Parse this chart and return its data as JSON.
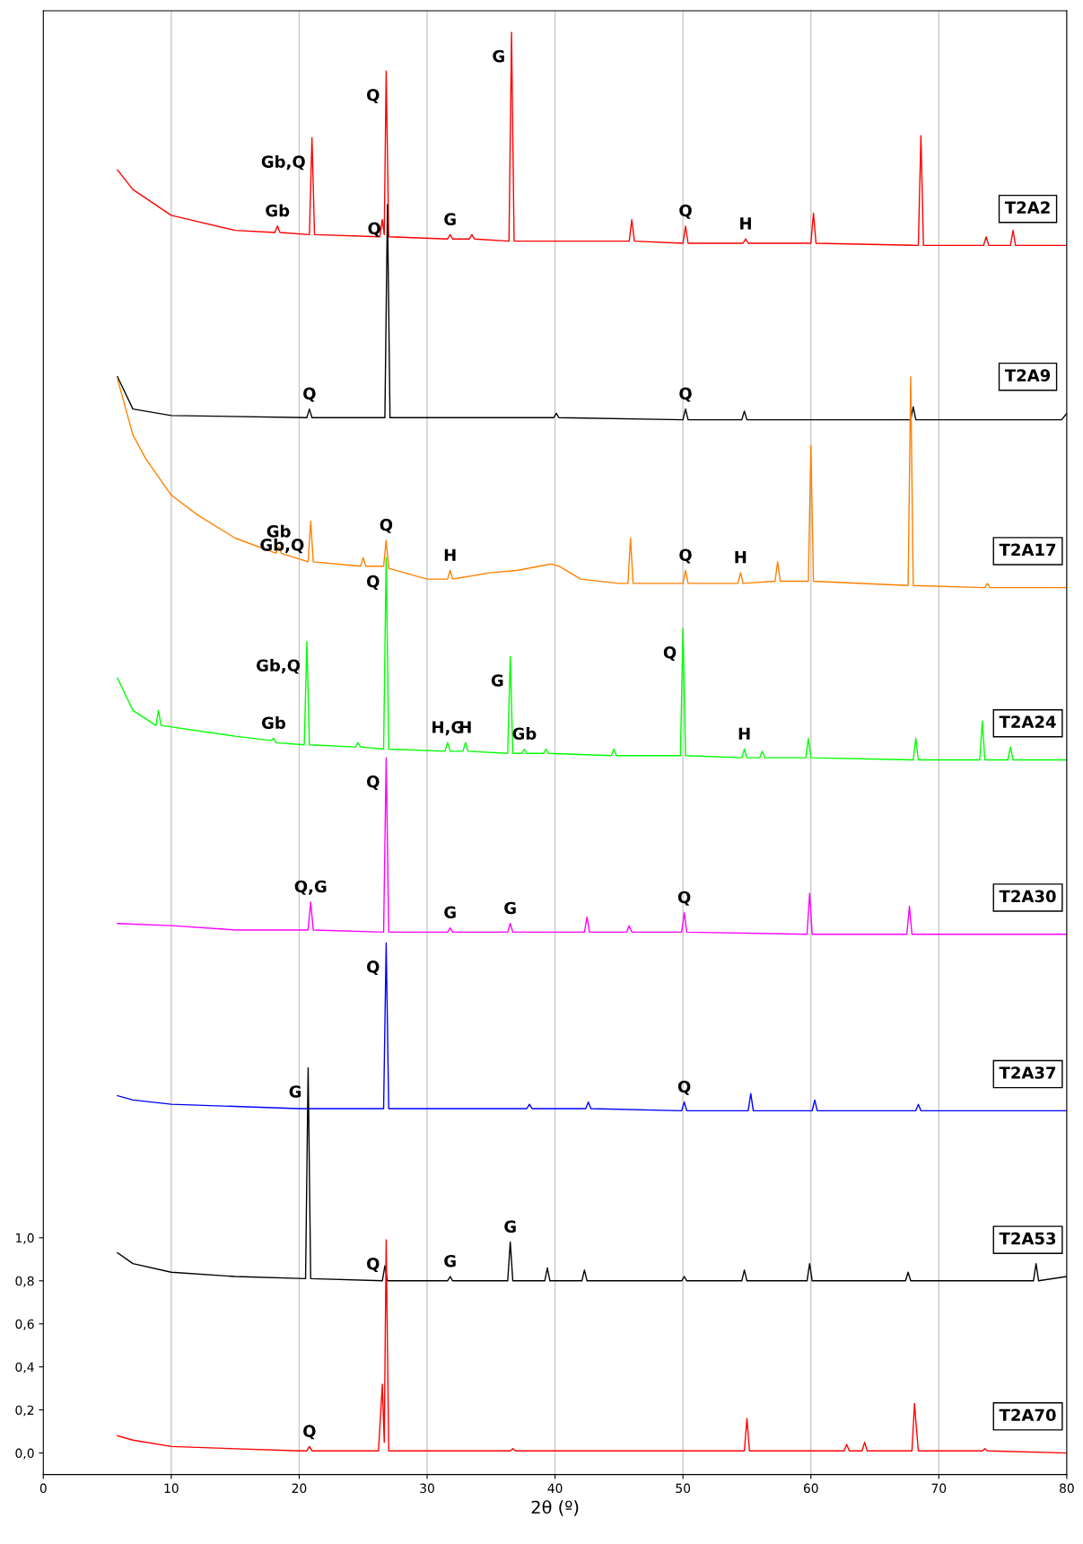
{
  "chart_data": {
    "type": "line",
    "xlabel": "2θ (º)",
    "xlim": [
      0,
      80
    ],
    "xticks": [
      0,
      10,
      20,
      30,
      40,
      50,
      60,
      70,
      80
    ],
    "ylim": [
      -0.1,
      6.7
    ],
    "yticks": [
      {
        "value": 0,
        "label": "0,0"
      },
      {
        "value": 0.2,
        "label": "0,2"
      },
      {
        "value": 0.4,
        "label": "0,4"
      },
      {
        "value": 0.6,
        "label": "0,6"
      },
      {
        "value": 0.8,
        "label": "0,8"
      },
      {
        "value": 1.0,
        "label": "1,0"
      }
    ],
    "grid": "x",
    "line_style": "solid",
    "series": [
      {
        "name": "T2A2",
        "color": "#ff0000",
        "x": [
          5.8,
          7,
          10,
          15,
          18.1,
          18.3,
          18.5,
          20.8,
          21.0,
          21.2,
          26.3,
          26.5,
          26.65,
          26.8,
          27.0,
          31.6,
          31.8,
          32.0,
          33.3,
          33.5,
          33.7,
          36.4,
          36.6,
          36.8,
          45.8,
          46.0,
          46.2,
          50.0,
          50.2,
          50.4,
          54.7,
          54.9,
          55.1,
          60.0,
          60.2,
          60.4,
          68.4,
          68.6,
          68.8,
          73.5,
          73.7,
          73.9,
          75.6,
          75.8,
          76.0,
          80
        ],
        "values": [
          5.96,
          5.87,
          5.75,
          5.68,
          5.67,
          5.7,
          5.67,
          5.66,
          6.11,
          5.66,
          5.65,
          5.73,
          5.66,
          6.42,
          5.65,
          5.64,
          5.66,
          5.64,
          5.64,
          5.66,
          5.64,
          5.63,
          6.6,
          5.63,
          5.63,
          5.73,
          5.63,
          5.62,
          5.7,
          5.62,
          5.62,
          5.64,
          5.62,
          5.62,
          5.76,
          5.62,
          5.61,
          6.12,
          5.61,
          5.61,
          5.65,
          5.61,
          5.61,
          5.68,
          5.61,
          5.61
        ]
      },
      {
        "name": "T2A9",
        "color": "#000000",
        "x": [
          5.8,
          7,
          10,
          20.6,
          20.8,
          21.0,
          26.7,
          26.9,
          27.1,
          39.9,
          40.1,
          40.3,
          50.0,
          50.2,
          50.4,
          54.6,
          54.8,
          55.0,
          67.8,
          68.0,
          68.2,
          79.6,
          80
        ],
        "values": [
          5.0,
          4.85,
          4.82,
          4.81,
          4.85,
          4.81,
          4.81,
          5.8,
          4.81,
          4.81,
          4.83,
          4.81,
          4.8,
          4.85,
          4.8,
          4.8,
          4.84,
          4.8,
          4.8,
          4.86,
          4.8,
          4.8,
          4.83
        ]
      },
      {
        "name": "T2A17",
        "color": "#ff8000",
        "x": [
          5.8,
          7,
          8,
          10,
          12,
          15,
          18.2,
          18.4,
          18.6,
          20.7,
          20.9,
          21.1,
          24.8,
          25.0,
          25.2,
          26.6,
          26.8,
          27.0,
          30,
          31.6,
          31.8,
          32.0,
          35,
          37,
          39.7,
          40.3,
          42,
          45,
          45.7,
          45.9,
          46.1,
          50.0,
          50.2,
          50.4,
          54.3,
          54.5,
          54.7,
          57.2,
          57.4,
          57.6,
          59.8,
          60.0,
          60.2,
          67.6,
          67.8,
          68.0,
          73.6,
          73.8,
          74.0,
          80
        ],
        "values": [
          4.99,
          4.73,
          4.62,
          4.45,
          4.36,
          4.25,
          4.18,
          4.21,
          4.18,
          4.14,
          4.33,
          4.14,
          4.12,
          4.16,
          4.12,
          4.12,
          4.24,
          4.11,
          4.06,
          4.06,
          4.1,
          4.06,
          4.09,
          4.1,
          4.13,
          4.12,
          4.06,
          4.04,
          4.04,
          4.25,
          4.04,
          4.04,
          4.1,
          4.04,
          4.04,
          4.09,
          4.04,
          4.05,
          4.14,
          4.05,
          4.05,
          4.68,
          4.05,
          4.03,
          5.0,
          4.03,
          4.02,
          4.04,
          4.02,
          4.02
        ]
      },
      {
        "name": "T2A24",
        "color": "#00ff00",
        "x": [
          5.8,
          7,
          8.8,
          9.0,
          9.2,
          15,
          17.8,
          18.0,
          18.2,
          20.4,
          20.6,
          20.8,
          24.4,
          24.6,
          24.8,
          26.6,
          26.8,
          27.0,
          31.4,
          31.6,
          31.8,
          32.8,
          33.0,
          33.2,
          36.3,
          36.5,
          36.7,
          37.4,
          37.6,
          37.8,
          39.1,
          39.3,
          39.5,
          44.4,
          44.6,
          44.8,
          49.8,
          50.0,
          50.2,
          54.6,
          54.8,
          55.0,
          56.0,
          56.2,
          56.4,
          59.6,
          59.8,
          60.0,
          68.0,
          68.2,
          68.4,
          73.2,
          73.4,
          73.6,
          75.4,
          75.6,
          75.8,
          80
        ],
        "values": [
          3.6,
          3.45,
          3.38,
          3.45,
          3.38,
          3.33,
          3.31,
          3.32,
          3.3,
          3.29,
          3.77,
          3.29,
          3.28,
          3.3,
          3.28,
          3.27,
          4.16,
          3.27,
          3.26,
          3.3,
          3.26,
          3.26,
          3.3,
          3.26,
          3.25,
          3.7,
          3.25,
          3.25,
          3.27,
          3.25,
          3.25,
          3.27,
          3.25,
          3.24,
          3.27,
          3.24,
          3.24,
          3.83,
          3.24,
          3.23,
          3.27,
          3.23,
          3.23,
          3.26,
          3.23,
          3.23,
          3.32,
          3.23,
          3.22,
          3.32,
          3.22,
          3.22,
          3.4,
          3.22,
          3.22,
          3.28,
          3.22,
          3.22
        ]
      },
      {
        "name": "T2A30",
        "color": "#ff00ff",
        "x": [
          5.8,
          10,
          15,
          20.7,
          20.9,
          21.1,
          26.6,
          26.8,
          27.0,
          31.6,
          31.8,
          32.0,
          36.3,
          36.5,
          36.7,
          42.3,
          42.5,
          42.7,
          45.6,
          45.8,
          46.0,
          49.9,
          50.1,
          50.3,
          59.7,
          59.9,
          60.1,
          67.5,
          67.7,
          67.9,
          80
        ],
        "values": [
          2.46,
          2.45,
          2.43,
          2.43,
          2.56,
          2.43,
          2.42,
          3.23,
          2.42,
          2.42,
          2.44,
          2.42,
          2.42,
          2.46,
          2.42,
          2.42,
          2.49,
          2.42,
          2.42,
          2.45,
          2.42,
          2.42,
          2.51,
          2.42,
          2.41,
          2.6,
          2.41,
          2.41,
          2.54,
          2.41,
          2.41
        ]
      },
      {
        "name": "T2A37",
        "color": "#0000ff",
        "x": [
          5.8,
          7,
          10,
          20,
          26.6,
          26.8,
          27.0,
          37.8,
          38.0,
          38.2,
          42.4,
          42.6,
          42.8,
          49.9,
          50.1,
          50.3,
          55.1,
          55.3,
          55.5,
          60.1,
          60.3,
          60.5,
          68.2,
          68.4,
          68.6,
          80
        ],
        "values": [
          1.66,
          1.64,
          1.62,
          1.6,
          1.6,
          2.37,
          1.6,
          1.6,
          1.62,
          1.6,
          1.6,
          1.63,
          1.6,
          1.59,
          1.63,
          1.59,
          1.59,
          1.67,
          1.59,
          1.59,
          1.64,
          1.59,
          1.59,
          1.62,
          1.59,
          1.59
        ]
      },
      {
        "name": "T2A53",
        "color": "#000000",
        "x": [
          5.8,
          7,
          10,
          15,
          20.5,
          20.7,
          20.9,
          26.5,
          26.7,
          26.9,
          31.6,
          31.8,
          32.0,
          36.3,
          36.5,
          36.7,
          39.2,
          39.4,
          39.6,
          42.1,
          42.3,
          42.5,
          49.9,
          50.1,
          50.3,
          54.6,
          54.8,
          55.0,
          59.7,
          59.9,
          60.1,
          67.4,
          67.6,
          67.8,
          77.4,
          77.6,
          77.8,
          80
        ],
        "values": [
          0.93,
          0.88,
          0.84,
          0.82,
          0.81,
          1.79,
          0.81,
          0.8,
          0.87,
          0.8,
          0.8,
          0.82,
          0.8,
          0.8,
          0.98,
          0.8,
          0.8,
          0.86,
          0.8,
          0.8,
          0.85,
          0.8,
          0.8,
          0.82,
          0.8,
          0.8,
          0.85,
          0.8,
          0.8,
          0.88,
          0.8,
          0.8,
          0.84,
          0.8,
          0.8,
          0.88,
          0.8,
          0.82
        ]
      },
      {
        "name": "T2A70",
        "color": "#ff0000",
        "x": [
          5.8,
          7,
          10,
          15,
          20,
          20.6,
          20.8,
          21.0,
          26.2,
          26.5,
          26.65,
          26.8,
          27.0,
          36.5,
          36.7,
          36.9,
          54.8,
          55.0,
          55.2,
          62.6,
          62.8,
          63.0,
          64.0,
          64.2,
          64.4,
          67.9,
          68.1,
          68.2,
          68.4,
          73.4,
          73.6,
          73.8,
          80
        ],
        "values": [
          0.08,
          0.06,
          0.03,
          0.02,
          0.01,
          0.01,
          0.03,
          0.01,
          0.01,
          0.32,
          0.05,
          0.99,
          0.01,
          0.01,
          0.02,
          0.01,
          0.01,
          0.16,
          0.01,
          0.01,
          0.04,
          0.01,
          0.01,
          0.05,
          0.01,
          0.01,
          0.23,
          0.15,
          0.01,
          0.01,
          0.02,
          0.01,
          0.0
        ]
      }
    ],
    "annotations": [
      {
        "text": "Gb",
        "x": 18.3,
        "y": 5.7
      },
      {
        "text": "Gb,Q",
        "x": 21.0,
        "y": 6.11
      },
      {
        "text": "Q",
        "x": 26.8,
        "y": 6.42
      },
      {
        "text": "G",
        "x": 31.8,
        "y": 5.66
      },
      {
        "text": "G",
        "x": 36.6,
        "y": 6.6
      },
      {
        "text": "Q",
        "x": 50.2,
        "y": 5.7
      },
      {
        "text": "H",
        "x": 54.9,
        "y": 5.64
      },
      {
        "text": "Q",
        "x": 26.9,
        "y": 5.8
      },
      {
        "text": "Q",
        "x": 20.8,
        "y": 4.85
      },
      {
        "text": "Q",
        "x": 50.2,
        "y": 4.85
      },
      {
        "text": "Gb",
        "x": 18.4,
        "y": 4.21
      },
      {
        "text": "Gb,Q",
        "x": 20.9,
        "y": 4.33
      },
      {
        "text": "Q",
        "x": 26.8,
        "y": 4.24
      },
      {
        "text": "H",
        "x": 31.8,
        "y": 4.1
      },
      {
        "text": "Q",
        "x": 50.2,
        "y": 4.1
      },
      {
        "text": "H",
        "x": 54.5,
        "y": 4.09
      },
      {
        "text": "Gb,Q",
        "x": 20.6,
        "y": 3.77
      },
      {
        "text": "Q",
        "x": 26.8,
        "y": 4.16
      },
      {
        "text": "G",
        "x": 36.5,
        "y": 3.7
      },
      {
        "text": "Q",
        "x": 50.0,
        "y": 3.83
      },
      {
        "text": "Gb",
        "x": 18.0,
        "y": 3.32
      },
      {
        "text": "H,G",
        "x": 31.6,
        "y": 3.3
      },
      {
        "text": "H",
        "x": 33.0,
        "y": 3.3
      },
      {
        "text": "Gb",
        "x": 37.6,
        "y": 3.27
      },
      {
        "text": "H",
        "x": 54.8,
        "y": 3.27
      },
      {
        "text": "Q",
        "x": 26.8,
        "y": 3.23
      },
      {
        "text": "Q,G",
        "x": 20.9,
        "y": 2.56
      },
      {
        "text": "G",
        "x": 31.8,
        "y": 2.44
      },
      {
        "text": "G",
        "x": 36.5,
        "y": 2.46
      },
      {
        "text": "Q",
        "x": 50.1,
        "y": 2.51
      },
      {
        "text": "Q",
        "x": 26.8,
        "y": 2.37
      },
      {
        "text": "Q",
        "x": 50.1,
        "y": 1.63
      },
      {
        "text": "G",
        "x": 20.7,
        "y": 1.79
      },
      {
        "text": "G",
        "x": 31.8,
        "y": 0.82
      },
      {
        "text": "G",
        "x": 36.5,
        "y": 0.98
      },
      {
        "text": "Q",
        "x": 26.8,
        "y": 0.99
      },
      {
        "text": "Q",
        "x": 20.8,
        "y": 0.03
      }
    ]
  }
}
